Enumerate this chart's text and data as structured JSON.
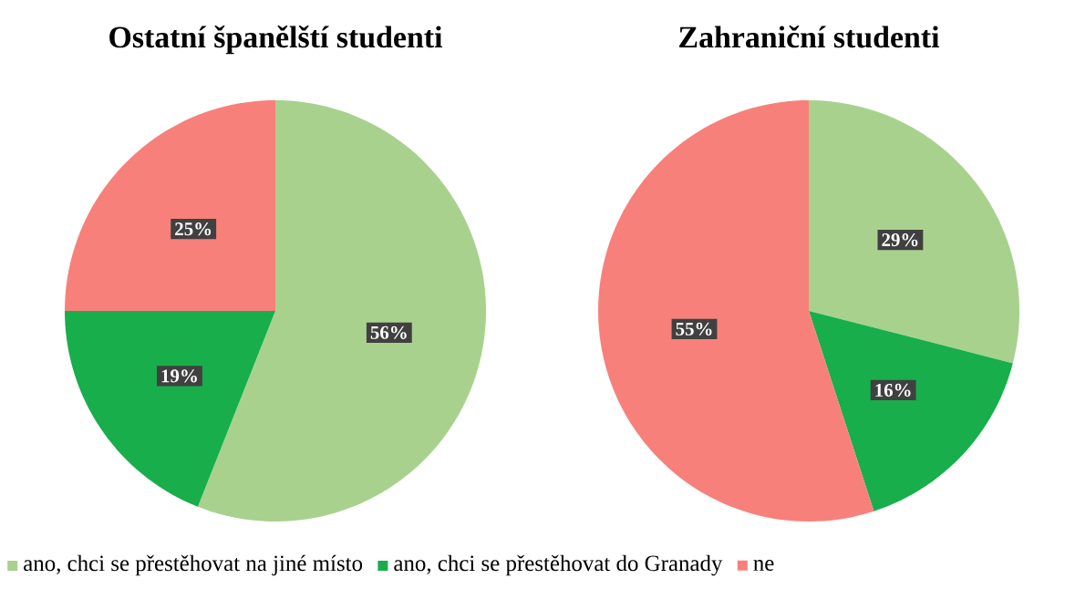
{
  "chart_data": [
    {
      "type": "pie",
      "title": "Ostatní španělští studenti",
      "categories": [
        "ano, chci se přestěhovat na jiné místo",
        "ano, chci se přestěhovat do Granady",
        "ne"
      ],
      "values": [
        56,
        19,
        25
      ],
      "value_labels": [
        "56%",
        "19%",
        "25%"
      ],
      "colors": [
        "#a9d18e",
        "#17ae4b",
        "#f8807a"
      ],
      "legend": "bottom"
    },
    {
      "type": "pie",
      "title": "Zahraniční studenti",
      "categories": [
        null,
        null,
        null
      ],
      "values": [
        29,
        16,
        55
      ],
      "value_labels": [
        "29%",
        "16%",
        "55%"
      ],
      "colors": [
        "#a9d18e",
        "#17ae4b",
        "#f8807a"
      ]
    }
  ]
}
